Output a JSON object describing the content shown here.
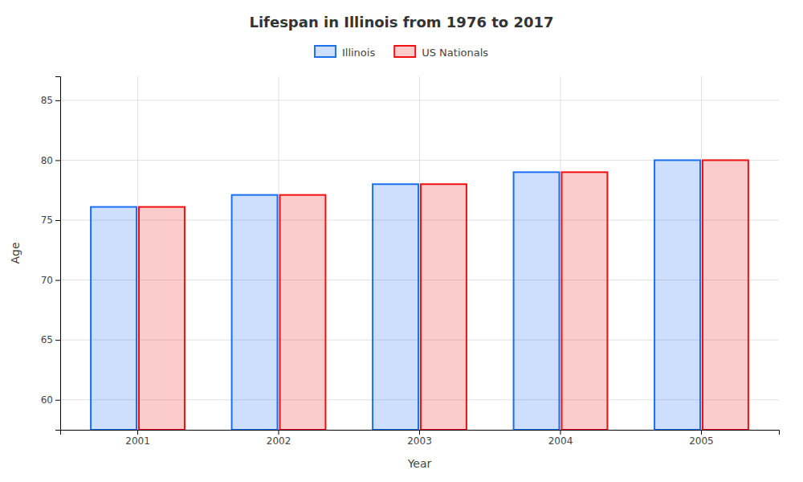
{
  "chart_data": {
    "type": "bar",
    "title": "Lifespan in Illinois from 1976 to 2017",
    "x_label": "Year",
    "y_label": "Age",
    "categories": [
      "2001",
      "2002",
      "2003",
      "2004",
      "2005"
    ],
    "series": [
      {
        "name": "Illinois",
        "color": "#1a6ff5",
        "values": [
          76.1,
          77.1,
          78.0,
          79.0,
          80.0
        ]
      },
      {
        "name": "US Nationals",
        "color": "#f01010",
        "values": [
          76.1,
          77.1,
          78.0,
          79.0,
          80.0
        ]
      }
    ],
    "ylim": [
      57.5,
      87
    ],
    "yticks": [
      60,
      65,
      70,
      75,
      80,
      85
    ],
    "grid": true,
    "legend": "top"
  }
}
